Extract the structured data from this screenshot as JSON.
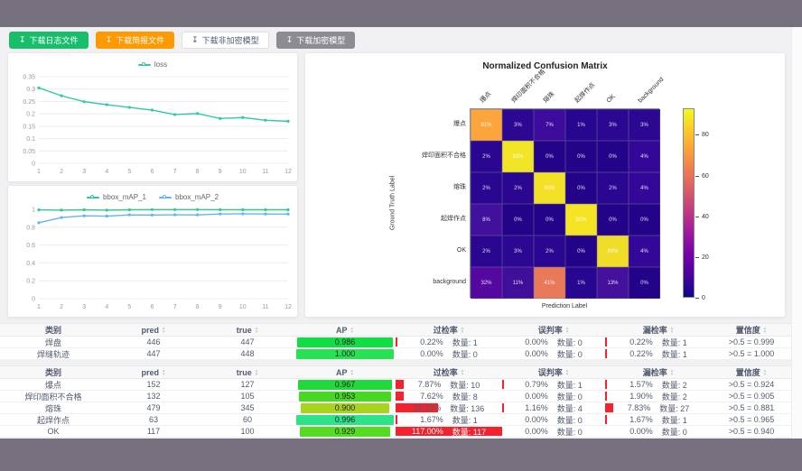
{
  "colors": {
    "frame_band": "#76707e",
    "content_bg": "#f1f1f3",
    "accent_teal": "#30c9a8",
    "accent_green": "#30c98f",
    "accent_blue": "#62b4f6",
    "danger_red": "#f5222d",
    "button_green": "#19be6b",
    "button_orange": "#ff9900",
    "button_gray": "#8c8c92"
  },
  "toolbar": {
    "buttons": [
      {
        "id": "download-log-file",
        "label": "下载日志文件",
        "icon": "download-icon",
        "glyph": "↧",
        "style": "green"
      },
      {
        "id": "download-report-file",
        "label": "下载简报文件",
        "icon": "download-icon",
        "glyph": "↧",
        "style": "orange"
      },
      {
        "id": "download-unencrypted-model",
        "label": "下载非加密模型",
        "icon": "download-icon",
        "glyph": "↧",
        "style": "white"
      },
      {
        "id": "download-encrypted-model",
        "label": "下载加密模型",
        "icon": "download-icon",
        "glyph": "↧",
        "style": "gray"
      }
    ]
  },
  "chart_data": [
    {
      "type": "line",
      "name": "loss-chart",
      "title": "",
      "x": [
        1,
        2,
        3,
        4,
        5,
        6,
        7,
        8,
        9,
        10,
        11,
        12
      ],
      "series": [
        {
          "name": "loss",
          "color": "#30c9a8",
          "values": [
            0.305,
            0.273,
            0.249,
            0.237,
            0.226,
            0.215,
            0.197,
            0.201,
            0.181,
            0.185,
            0.174,
            0.17
          ]
        }
      ],
      "ylim": [
        0,
        0.35
      ],
      "yticks": [
        0,
        0.05,
        0.1,
        0.15,
        0.2,
        0.25,
        0.3,
        0.35
      ],
      "grid": true,
      "legend_position": "top"
    },
    {
      "type": "line",
      "name": "map-chart",
      "title": "",
      "x": [
        1,
        2,
        3,
        4,
        5,
        6,
        7,
        8,
        9,
        10,
        11,
        12
      ],
      "series": [
        {
          "name": "bbox_mAP_1",
          "color": "#30c98f",
          "values": [
            0.994,
            0.991,
            0.995,
            0.991,
            0.995,
            0.997,
            0.997,
            0.997,
            0.996,
            0.995,
            0.995,
            0.995
          ]
        },
        {
          "name": "bbox_mAP_2",
          "color": "#62b4f6",
          "values": [
            0.85,
            0.908,
            0.927,
            0.924,
            0.938,
            0.936,
            0.939,
            0.938,
            0.948,
            0.95,
            0.948,
            0.948
          ]
        }
      ],
      "ylim": [
        0,
        1
      ],
      "yticks": [
        0,
        0.2,
        0.4,
        0.6,
        0.8,
        1
      ],
      "grid": true,
      "legend_position": "top"
    },
    {
      "type": "heatmap",
      "name": "confusion-matrix",
      "title": "Normalized Confusion Matrix",
      "xlabel": "Prediction Label",
      "ylabel": "Ground Truth Label",
      "labels": [
        "爆点",
        "焊印面积不合格",
        "熔珠",
        "起焊作点",
        "OK",
        "background"
      ],
      "unit": "%",
      "values": [
        [
          81,
          3,
          7,
          1,
          3,
          3
        ],
        [
          2,
          93,
          0,
          0,
          0,
          4
        ],
        [
          2,
          2,
          90,
          0,
          2,
          4
        ],
        [
          8,
          0,
          0,
          92,
          0,
          0
        ],
        [
          2,
          3,
          2,
          0,
          89,
          4
        ],
        [
          32,
          11,
          41,
          1,
          13,
          0
        ]
      ],
      "cell_colors": [
        [
          "#fca53c",
          "#2b0792",
          "#3d0c9c",
          "#270690",
          "#2b0792",
          "#2b0792"
        ],
        [
          "#2a0691",
          "#f2e526",
          "#230488",
          "#230488",
          "#230488",
          "#330899"
        ],
        [
          "#2a0691",
          "#2a0691",
          "#f2e126",
          "#230488",
          "#2a0691",
          "#330899"
        ],
        [
          "#41119e",
          "#230488",
          "#230488",
          "#f4e424",
          "#230488",
          "#230488"
        ],
        [
          "#2a0691",
          "#2b0792",
          "#2a0691",
          "#230488",
          "#f0dd28",
          "#330899"
        ],
        [
          "#55089f",
          "#400f9a",
          "#e87a59",
          "#270690",
          "#43119c",
          "#230488"
        ]
      ],
      "vmin": 0,
      "vmax": 93,
      "colorbar_ticks": [
        80,
        60,
        40,
        20,
        0
      ],
      "colormap_stops": [
        "#0d0887",
        "#46039f",
        "#7201a8",
        "#9c179e",
        "#bd3786",
        "#d8576b",
        "#ed7953",
        "#fb9f3a",
        "#fdca26",
        "#f0f921"
      ]
    }
  ],
  "tables": {
    "headers": [
      {
        "label": "类别",
        "sortable": false
      },
      {
        "label": "pred",
        "sortable": true
      },
      {
        "label": "true",
        "sortable": true
      },
      {
        "label": "AP",
        "sortable": true
      },
      {
        "label": "过检率",
        "sortable": true
      },
      {
        "label": "误判率",
        "sortable": true
      },
      {
        "label": "漏检率",
        "sortable": true
      },
      {
        "label": "置信度",
        "sortable": true
      }
    ],
    "groups": [
      {
        "rows": [
          {
            "category": "焊盘",
            "pred": "446",
            "true": "447",
            "ap": "0.986",
            "ap_color": "#13dd45",
            "over_pct": "0.22%",
            "over_count": "数量: 1",
            "over_bar": 0.22,
            "over_text": "#515a6e",
            "mis_pct": "0.00%",
            "mis_count": "数量: 0",
            "mis_bar": 0,
            "miss_pct": "0.22%",
            "miss_count": "数量: 1",
            "miss_bar": 0.22,
            "conf": ">0.5 = 0.999"
          },
          {
            "category": "焊缝轨迹",
            "pred": "447",
            "true": "448",
            "ap": "1.000",
            "ap_color": "#29e253",
            "over_pct": "0.00%",
            "over_count": "数量: 0",
            "over_bar": 0,
            "over_text": "#515a6e",
            "mis_pct": "0.00%",
            "mis_count": "数量: 0",
            "mis_bar": 0,
            "miss_pct": "0.22%",
            "miss_count": "数量: 1",
            "miss_bar": 0.22,
            "conf": ">0.5 = 1.000"
          }
        ]
      },
      {
        "rows": [
          {
            "category": "爆点",
            "pred": "152",
            "true": "127",
            "ap": "0.967",
            "ap_color": "#21d93a",
            "over_pct": "7.87%",
            "over_count": "数量: 10",
            "over_bar": 7.87,
            "over_text": "#515a6e",
            "mis_pct": "0.79%",
            "mis_count": "数量: 1",
            "mis_bar": 0.79,
            "miss_pct": "1.57%",
            "miss_count": "数量: 2",
            "miss_bar": 1.57,
            "conf": ">0.5 = 0.924"
          },
          {
            "category": "焊印面积不合格",
            "pred": "132",
            "true": "105",
            "ap": "0.953",
            "ap_color": "#48d824",
            "over_pct": "7.62%",
            "over_count": "数量: 8",
            "over_bar": 7.62,
            "over_text": "#515a6e",
            "mis_pct": "0.00%",
            "mis_count": "数量: 0",
            "mis_bar": 0,
            "miss_pct": "1.90%",
            "miss_count": "数量: 2",
            "miss_bar": 1.9,
            "conf": ">0.5 = 0.905"
          },
          {
            "category": "熔珠",
            "pred": "479",
            "true": "345",
            "ap": "0.900",
            "ap_color": "#a8d41d",
            "over_pct": "39.42%",
            "over_count": "数量: 136",
            "over_bar": 39.42,
            "over_text": "#515a6e",
            "mis_pct": "1.16%",
            "mis_count": "数量: 4",
            "mis_bar": 1.16,
            "miss_pct": "7.83%",
            "miss_count": "数量: 27",
            "miss_bar": 7.83,
            "conf": ">0.5 = 0.881"
          },
          {
            "category": "起焊作点",
            "pred": "63",
            "true": "60",
            "ap": "0.996",
            "ap_color": "#2ce389",
            "over_pct": "1.67%",
            "over_count": "数量: 1",
            "over_bar": 1.67,
            "over_text": "#515a6e",
            "mis_pct": "0.00%",
            "mis_count": "数量: 0",
            "mis_bar": 0,
            "miss_pct": "1.67%",
            "miss_count": "数量: 1",
            "miss_bar": 1.67,
            "conf": ">0.5 = 0.965"
          },
          {
            "category": "OK",
            "pred": "117",
            "true": "100",
            "ap": "0.929",
            "ap_color": "#55dc20",
            "over_pct": "117.00%",
            "over_count": "数量: 117",
            "over_bar": 100,
            "over_text": "#ffffff",
            "mis_pct": "0.00%",
            "mis_count": "数量: 0",
            "mis_bar": 0,
            "miss_pct": "0.00%",
            "miss_count": "数量: 0",
            "miss_bar": 0,
            "conf": ">0.5 = 0.940"
          }
        ]
      }
    ]
  }
}
